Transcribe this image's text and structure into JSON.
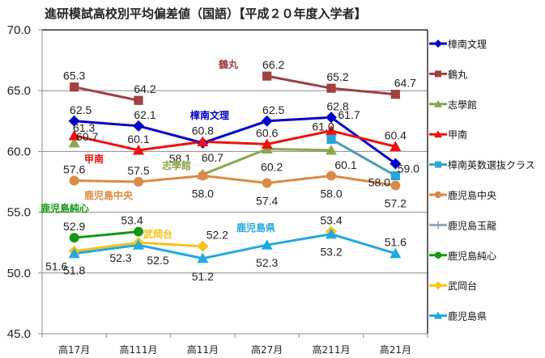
{
  "chart_data": {
    "type": "line",
    "title": "進研模試高校別平均偏差値（国語）【平成２０年度入学者】",
    "xlabel": "",
    "ylabel": "",
    "categories": [
      "高17月",
      "高111月",
      "高11月",
      "高27月",
      "高211月",
      "高21月"
    ],
    "ylim": [
      45.0,
      70.0
    ],
    "yticks": [
      "45.0",
      "50.0",
      "55.0",
      "60.0",
      "65.0",
      "70.0"
    ],
    "grid": true,
    "legend_position": "right",
    "series": [
      {
        "name": "樟南文理",
        "color": "#0000CC",
        "marker": "diamond",
        "values": [
          62.5,
          62.1,
          60.7,
          62.5,
          62.8,
          59.0
        ]
      },
      {
        "name": "鶴丸",
        "color": "#A0403F",
        "marker": "square",
        "values": [
          65.3,
          64.2,
          null,
          66.2,
          65.2,
          64.7
        ]
      },
      {
        "name": "志學館",
        "color": "#8AA84C",
        "marker": "triangle",
        "values": [
          60.7,
          null,
          58.1,
          60.2,
          60.1,
          null
        ]
      },
      {
        "name": "甲南",
        "color": "#EE1111",
        "marker": "triangle",
        "values": [
          61.3,
          60.1,
          60.8,
          60.6,
          61.7,
          60.4
        ]
      },
      {
        "name": "樟南英数選抜クラス",
        "color": "#27A7D8",
        "marker": "square",
        "line_color": "#4A9DB3",
        "values": [
          null,
          null,
          null,
          null,
          61.0,
          58.0
        ]
      },
      {
        "name": "鹿児島中央",
        "color": "#DB8A45",
        "marker": "circle",
        "values": [
          57.6,
          57.5,
          58.0,
          57.4,
          58.0,
          57.2
        ]
      },
      {
        "name": "鹿児島玉龍",
        "color": "#8FA6C6",
        "marker": "plus",
        "values": [
          null,
          null,
          null,
          null,
          null,
          null
        ]
      },
      {
        "name": "鹿児島純心",
        "color": "#119911",
        "marker": "circle",
        "values": [
          52.9,
          53.4,
          null,
          null,
          null,
          null
        ]
      },
      {
        "name": "武岡台",
        "color": "#F7C21B",
        "marker": "diamond",
        "values": [
          51.8,
          52.5,
          52.2,
          null,
          53.4,
          null
        ]
      },
      {
        "name": "鹿児島県",
        "color": "#22A8E0",
        "marker": "triangle",
        "values": [
          51.6,
          52.3,
          51.2,
          52.3,
          53.2,
          51.6
        ]
      }
    ],
    "annotations": [
      {
        "text": "鶴丸",
        "series": "鶴丸"
      },
      {
        "text": "樟南文理",
        "series": "樟南文理"
      },
      {
        "text": "甲南",
        "series": "甲南"
      },
      {
        "text": "志學館",
        "series": "志學館"
      },
      {
        "text": "鹿児島中央",
        "series": "鹿児島中央"
      },
      {
        "text": "鹿児島純心",
        "series": "鹿児島純心"
      },
      {
        "text": "武岡台",
        "series": "武岡台"
      },
      {
        "text": "鹿児島県",
        "series": "鹿児島県"
      }
    ]
  }
}
